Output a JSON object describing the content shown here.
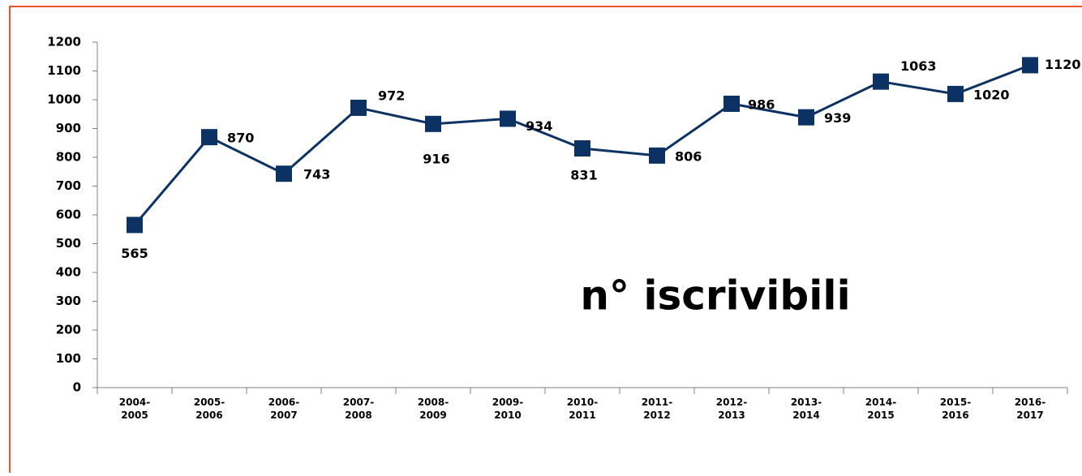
{
  "chart_data": {
    "type": "line",
    "title": "n° iscrivibili",
    "categories": [
      "2004-2005",
      "2005-2006",
      "2006-2007",
      "2007-2008",
      "2008-2009",
      "2009-2010",
      "2010-2011",
      "2011-2012",
      "2012-2013",
      "2013-2014",
      "2014-2015",
      "2015-2016",
      "2016-2017"
    ],
    "values": [
      565,
      870,
      743,
      972,
      916,
      934,
      831,
      806,
      986,
      939,
      1063,
      1020,
      1120
    ],
    "color": "#0b3262",
    "ylim": [
      0,
      1200
    ],
    "yticks": [
      0,
      100,
      200,
      300,
      400,
      500,
      600,
      700,
      800,
      900,
      1000,
      1100,
      1200
    ],
    "grid": false
  }
}
